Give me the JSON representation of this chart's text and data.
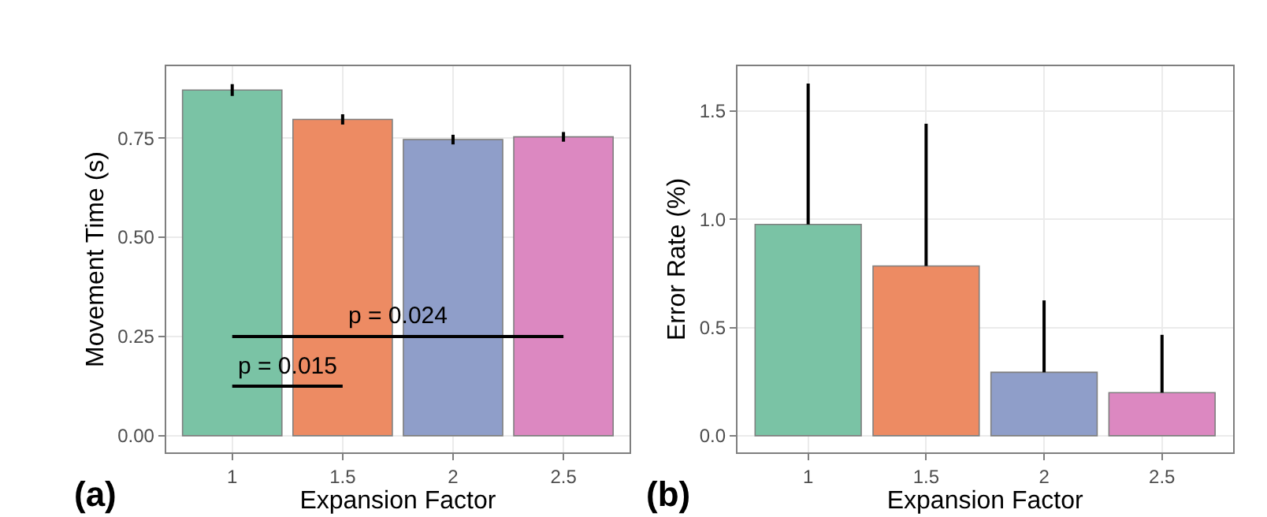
{
  "chart_data": [
    {
      "type": "bar",
      "title": "(a)",
      "xlabel": "Expansion Factor",
      "ylabel": "Movement Time (s)",
      "categories": [
        "1",
        "1.5",
        "2",
        "2.5"
      ],
      "series": [
        {
          "colors": [
            "#7ac3a5",
            "#ed8b63",
            "#8f9ec9",
            "#dc88c1"
          ],
          "values": [
            0.871,
            0.797,
            0.746,
            0.753
          ],
          "errors": [
            0.015,
            0.013,
            0.012,
            0.012
          ]
        },
        {
          "type": "line",
          "color": "#000000",
          "values": [
            0.125,
            0.125,
            null,
            null
          ]
        },
        {
          "type": "line",
          "color": "#000000",
          "values": [
            0.25,
            0.25,
            0.25,
            0.25
          ]
        }
      ],
      "annotations": [
        "p = 0.015",
        "p = 0.024"
      ],
      "ylim": [
        -0.042,
        0.931
      ],
      "yticks": [
        {
          "value": 0,
          "label": "0.00"
        },
        0.25,
        {
          "value": 0.5,
          "label": "0.50"
        },
        0.75
      ],
      "grid": true
    },
    {
      "type": "bar",
      "title": "(b)",
      "xlabel": "Expansion Factor",
      "ylabel": "Error Rate (%)",
      "categories": [
        "1",
        "1.5",
        "2",
        "2.5"
      ],
      "series": [
        {
          "colors": [
            "#7ac3a5",
            "#ed8b63",
            "#8f9ec9",
            "#dc88c1"
          ],
          "values": [
            0.976,
            0.784,
            0.293,
            0.199
          ],
          "errors": [
            [
              0.976,
              1.627
            ],
            [
              0.784,
              1.441
            ],
            [
              0.293,
              0.625
            ],
            [
              0.199,
              0.466
            ]
          ]
        }
      ],
      "ylim": [
        -0.077,
        1.707
      ],
      "yticks": [
        {
          "value": 0,
          "label": "0.0"
        },
        0.5,
        {
          "value": 1,
          "label": "1.0"
        },
        1.5
      ],
      "grid": true
    }
  ]
}
